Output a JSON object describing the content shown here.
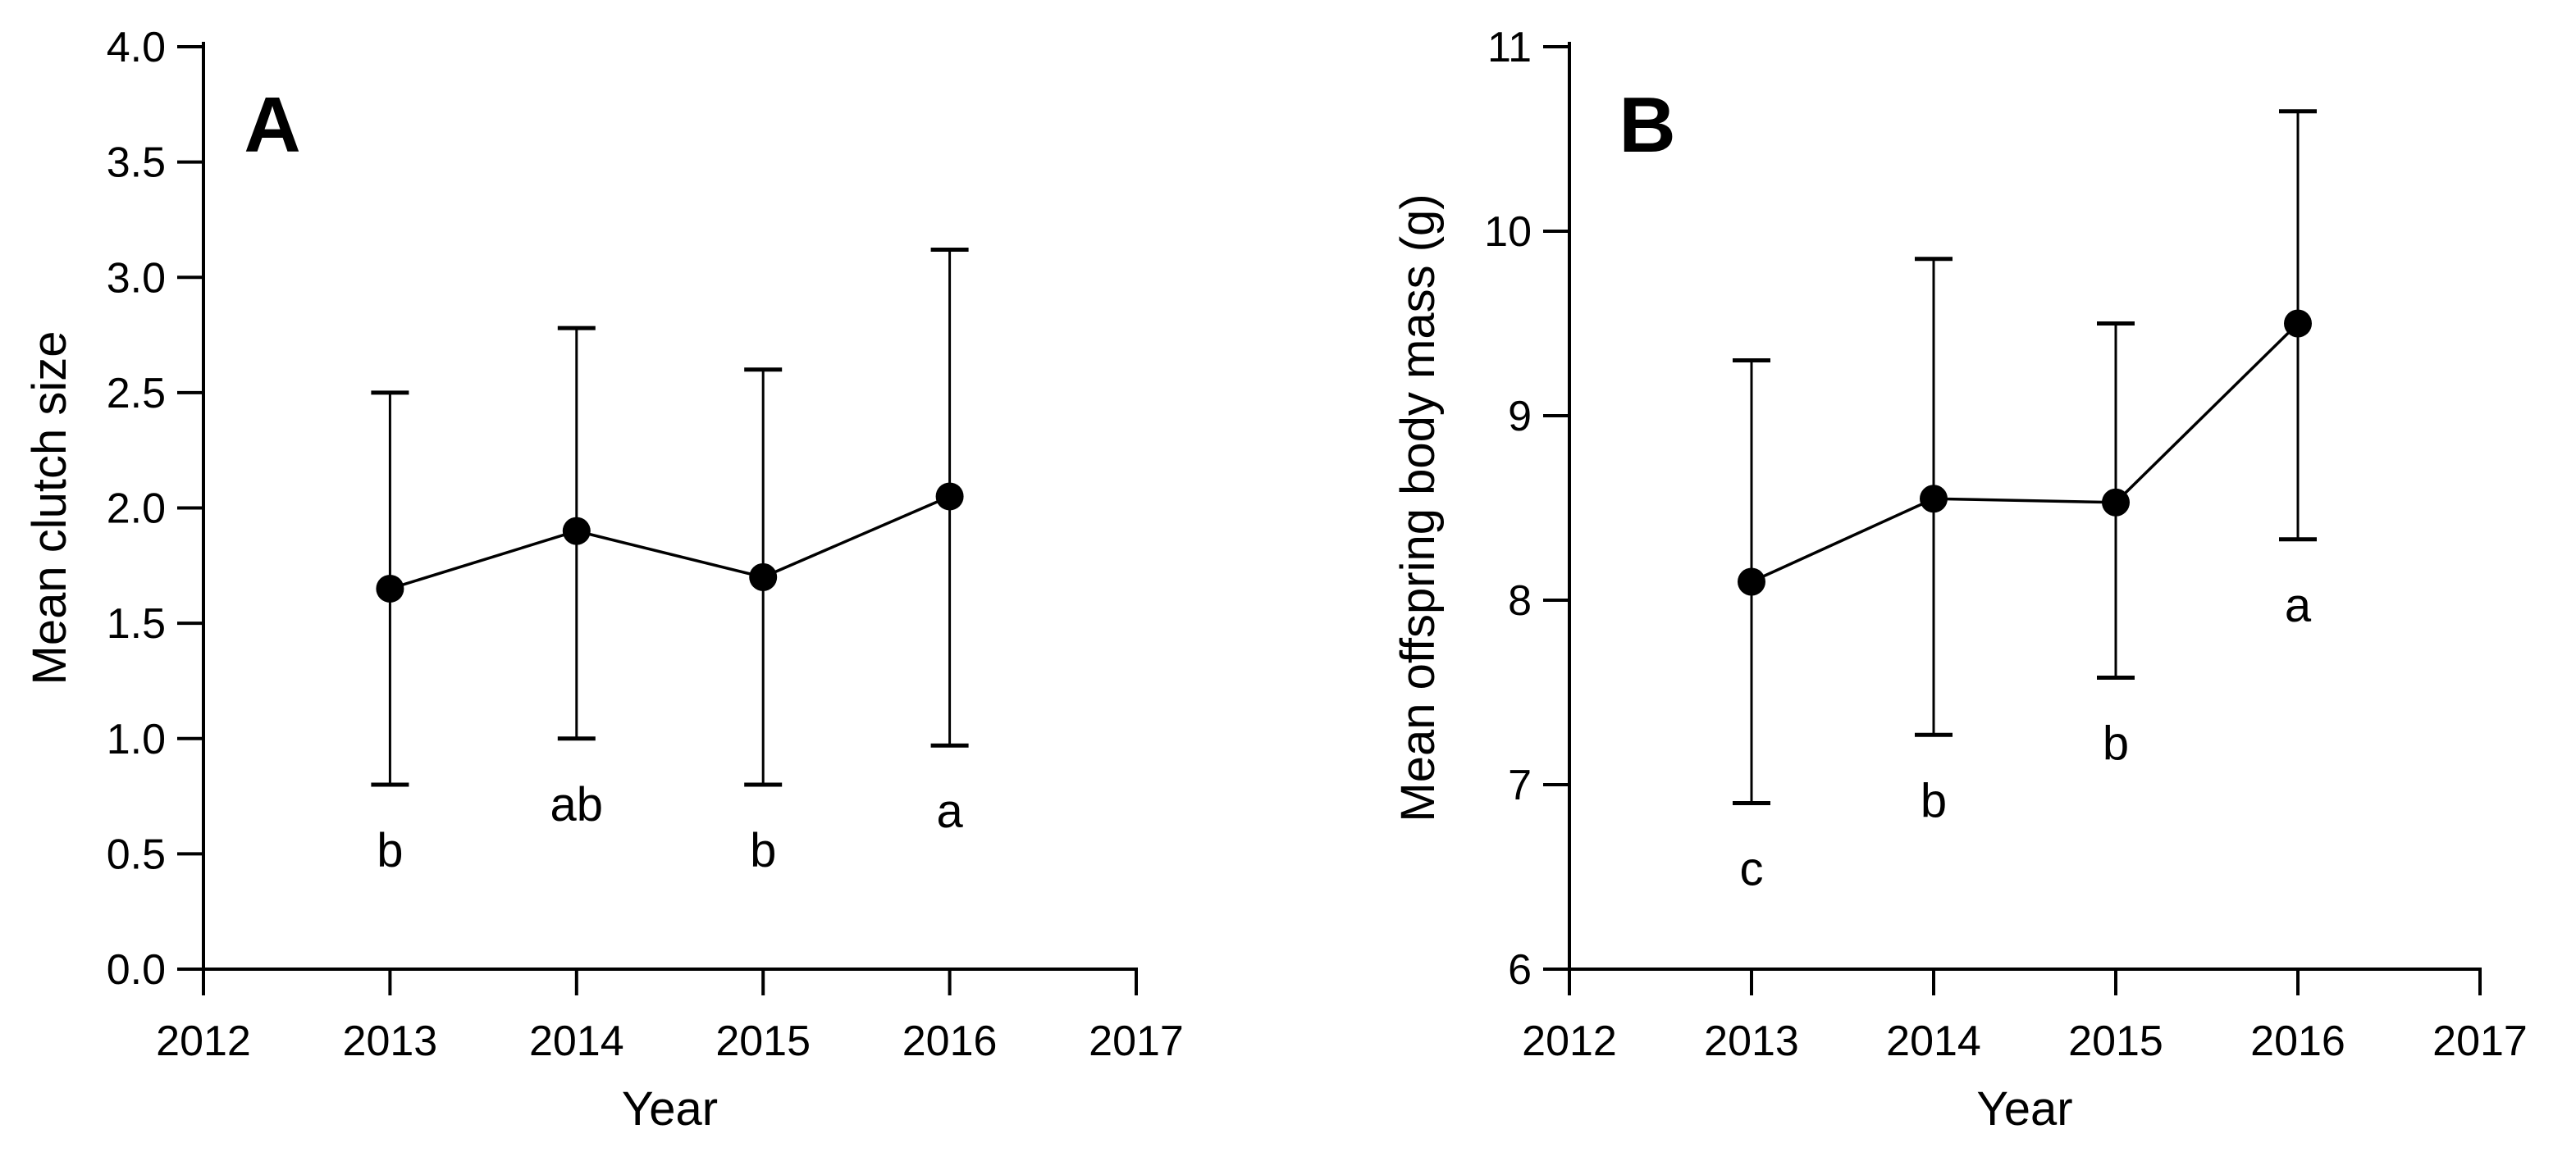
{
  "page": {
    "background_color": "#ffffff",
    "ink_color": "#000000",
    "figure_description": "Two-panel error-bar line chart of reproductive traits by year"
  },
  "chart_data": [
    {
      "type": "line",
      "panel_label": "A",
      "title": "",
      "xlabel": "Year",
      "ylabel": "Mean clutch size",
      "x": [
        2013,
        2014,
        2015,
        2016
      ],
      "series": [
        {
          "name": "Mean clutch size",
          "values": [
            1.65,
            1.9,
            1.7,
            2.05
          ],
          "error_lower_bounds": [
            0.8,
            1.0,
            0.8,
            0.97
          ],
          "error_upper_bounds": [
            2.5,
            2.78,
            2.6,
            3.12
          ]
        }
      ],
      "point_letters": [
        "b",
        "ab",
        "b",
        "a"
      ],
      "xlim": [
        2012,
        2017
      ],
      "ylim": [
        0.0,
        4.0
      ],
      "xtick_values": [
        2012,
        2013,
        2014,
        2015,
        2016,
        2017
      ],
      "xtick_labels": [
        "2012",
        "2013",
        "2014",
        "2015",
        "2016",
        "2017"
      ],
      "ytick_values": [
        0.0,
        0.5,
        1.0,
        1.5,
        2.0,
        2.5,
        3.0,
        3.5,
        4.0
      ],
      "ytick_labels": [
        "0.0",
        "0.5",
        "1.0",
        "1.5",
        "2.0",
        "2.5",
        "3.0",
        "3.5",
        "4.0"
      ],
      "grid": false,
      "legend": "none",
      "marker": "filled-black-circle"
    },
    {
      "type": "line",
      "panel_label": "B",
      "title": "",
      "xlabel": "Year",
      "ylabel": "Mean offspring body mass (g)",
      "x": [
        2013,
        2014,
        2015,
        2016
      ],
      "series": [
        {
          "name": "Mean offspring body mass (g)",
          "values": [
            8.1,
            8.55,
            8.53,
            9.5
          ],
          "error_lower_bounds": [
            6.9,
            7.27,
            7.58,
            8.33
          ],
          "error_upper_bounds": [
            9.3,
            9.85,
            9.5,
            10.65
          ]
        }
      ],
      "point_letters": [
        "c",
        "b",
        "b",
        "a"
      ],
      "xlim": [
        2012,
        2017
      ],
      "ylim": [
        6,
        11
      ],
      "xtick_values": [
        2012,
        2013,
        2014,
        2015,
        2016,
        2017
      ],
      "xtick_labels": [
        "2012",
        "2013",
        "2014",
        "2015",
        "2016",
        "2017"
      ],
      "ytick_values": [
        6,
        7,
        8,
        9,
        10,
        11
      ],
      "ytick_labels": [
        "6",
        "7",
        "8",
        "9",
        "10",
        "11"
      ],
      "grid": false,
      "legend": "none",
      "marker": "filled-black-circle"
    }
  ]
}
